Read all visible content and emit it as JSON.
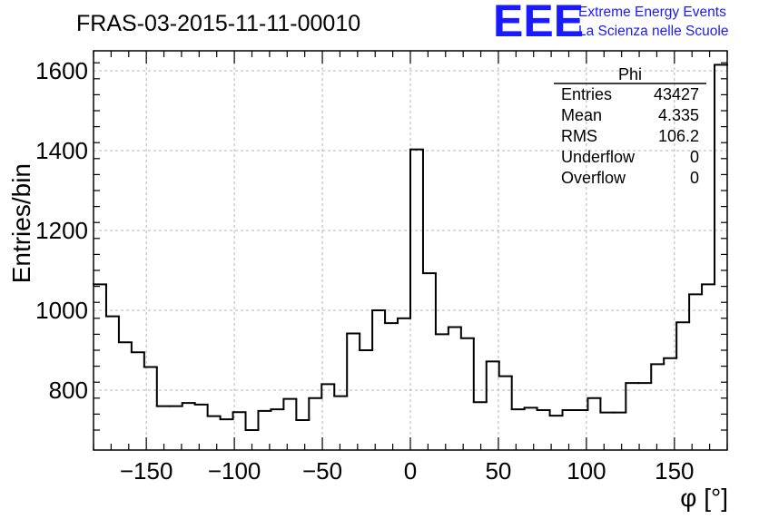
{
  "chart_data": {
    "type": "histogram",
    "title": "FRAS-03-2015-11-11-00010",
    "xlabel": "φ [°]",
    "ylabel": "Entries/bin",
    "xlim": [
      -180,
      180
    ],
    "ylim": [
      650,
      1650
    ],
    "grid": true,
    "xticks": [
      -150,
      -100,
      -50,
      0,
      50,
      100,
      150
    ],
    "xtick_labels": [
      "−150",
      "−100",
      "−50",
      "0",
      "50",
      "100",
      "150"
    ],
    "yticks": [
      800,
      1000,
      1200,
      1400,
      1600
    ],
    "ytick_labels": [
      "800",
      "1000",
      "1200",
      "1400",
      "1600"
    ],
    "bin_width": 7.2,
    "values": [
      1065,
      985,
      920,
      895,
      858,
      760,
      760,
      768,
      764,
      735,
      727,
      745,
      700,
      748,
      752,
      778,
      725,
      780,
      815,
      785,
      942,
      900,
      1000,
      968,
      980,
      1403,
      1093,
      940,
      958,
      930,
      770,
      872,
      835,
      752,
      756,
      750,
      736,
      750,
      750,
      780,
      744,
      744,
      818,
      818,
      865,
      880,
      970,
      1040,
      1065,
      1615
    ],
    "stats": {
      "title": "Phi",
      "rows": [
        {
          "label": "Entries",
          "value": "43427"
        },
        {
          "label": "Mean",
          "value": "4.335"
        },
        {
          "label": "RMS",
          "value": "106.2"
        },
        {
          "label": "Underflow",
          "value": "0"
        },
        {
          "label": "Overflow",
          "value": "0"
        }
      ]
    }
  },
  "logo": {
    "mark": "EEE",
    "line1": "Extreme Energy Events",
    "line2": "La Scienza nelle Scuole"
  }
}
